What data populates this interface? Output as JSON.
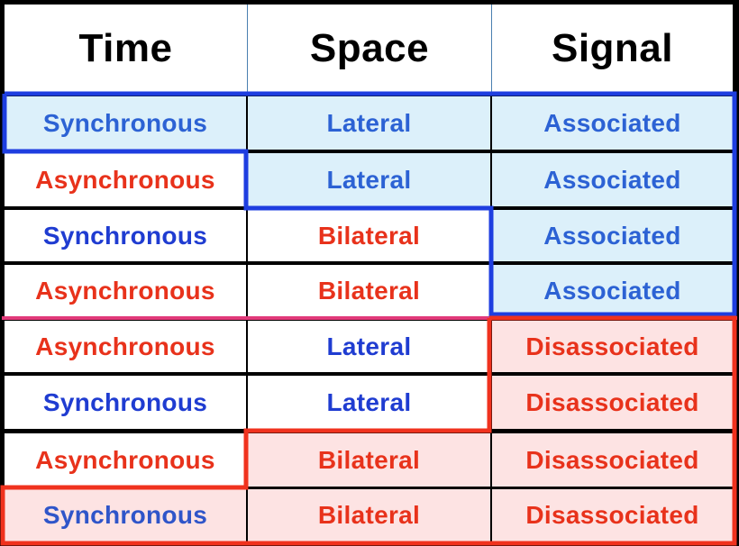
{
  "headers": {
    "time": "Time",
    "space": "Space",
    "signal": "Signal"
  },
  "colors": {
    "blue_text": "#1f3cd1",
    "red_text": "#e8321b",
    "blue_fill": "#dcf0fa",
    "pink_fill": "#fde3e3",
    "blue_outline": "#1e3ee0",
    "red_outline": "#f0321e",
    "pink_divider": "#e23a7a"
  },
  "rows": [
    {
      "time": "Synchronous",
      "space": "Lateral",
      "signal": "Associated"
    },
    {
      "time": "Asynchronous",
      "space": "Lateral",
      "signal": "Associated"
    },
    {
      "time": "Synchronous",
      "space": "Bilateral",
      "signal": "Associated"
    },
    {
      "time": "Asynchronous",
      "space": "Bilateral",
      "signal": "Associated"
    },
    {
      "time": "Asynchronous",
      "space": "Lateral",
      "signal": "Disassociated"
    },
    {
      "time": "Synchronous",
      "space": "Lateral",
      "signal": "Disassociated"
    },
    {
      "time": "Asynchronous",
      "space": "Bilateral",
      "signal": "Disassociated"
    },
    {
      "time": "Synchronous",
      "space": "Bilateral",
      "signal": "Disassociated"
    }
  ]
}
